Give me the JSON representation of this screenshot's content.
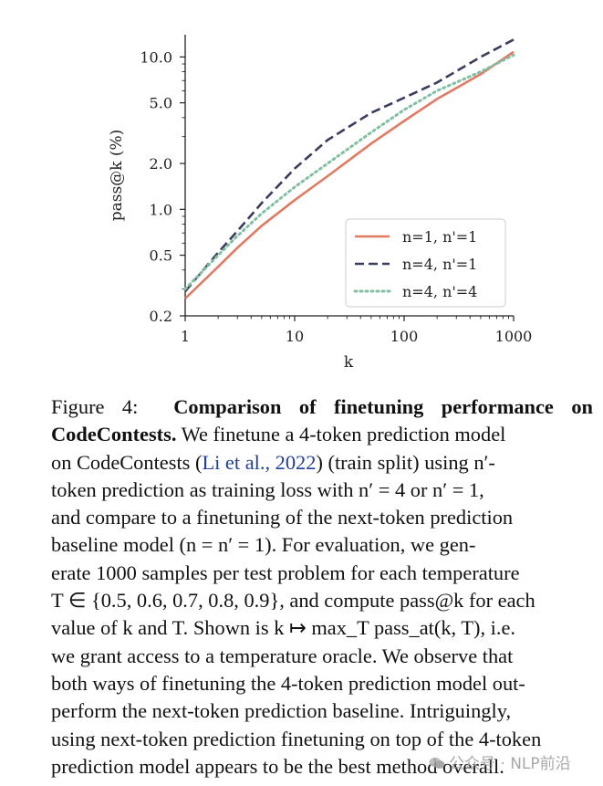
{
  "chart_data": {
    "type": "line",
    "xscale": "log",
    "yscale": "log",
    "xlim": [
      1,
      1000
    ],
    "ylim": [
      0.2,
      14
    ],
    "xlabel": "k",
    "ylabel": "pass@k (%)",
    "xticks": [
      1,
      10,
      100,
      1000
    ],
    "xtick_labels": [
      "1",
      "10",
      "100",
      "1000"
    ],
    "yticks": [
      0.2,
      0.5,
      1.0,
      2.0,
      5.0,
      10.0
    ],
    "ytick_labels": [
      "0.2",
      "0.5",
      "1.0",
      "2.0",
      "5.0",
      "10.0"
    ],
    "legend_position": "lower-right",
    "series": [
      {
        "name": "n=1, n'=1",
        "color": "#e07b63",
        "style": "solid",
        "x": [
          1,
          2,
          3,
          5,
          10,
          20,
          50,
          100,
          200,
          500,
          1000
        ],
        "y": [
          0.26,
          0.42,
          0.56,
          0.78,
          1.15,
          1.65,
          2.7,
          3.8,
          5.3,
          7.7,
          10.8
        ]
      },
      {
        "name": "n=4, n'=1",
        "color": "#3a3c5e",
        "style": "dashed",
        "x": [
          1,
          2,
          3,
          5,
          10,
          20,
          50,
          100,
          200,
          500,
          1000
        ],
        "y": [
          0.29,
          0.52,
          0.72,
          1.1,
          1.85,
          2.85,
          4.3,
          5.4,
          6.8,
          10.0,
          13.0
        ]
      },
      {
        "name": "n=4, n'=4",
        "color": "#82bfa2",
        "style": "dotted",
        "x": [
          1,
          2,
          3,
          5,
          10,
          20,
          50,
          100,
          200,
          500,
          1000
        ],
        "y": [
          0.3,
          0.5,
          0.67,
          0.94,
          1.4,
          2.0,
          3.2,
          4.5,
          6.0,
          8.0,
          10.3
        ]
      }
    ]
  },
  "caption": {
    "figure_label": "Figure 4:",
    "bold_title_l1": "Comparison of finetuning performance on",
    "bold_title_l2": "CodeContests.",
    "text_l2": " We finetune a 4-token prediction model",
    "text_l3a": "on CodeContests (",
    "cite": "Li et al., 2022",
    "text_l3b": ") (train split) using n′-",
    "l4": "token prediction as training loss with n′ = 4 or n′ = 1,",
    "l5": "and compare to a finetuning of the next-token prediction",
    "l6": "baseline model (n = n′ = 1).  For evaluation, we gen-",
    "l7": "erate 1000 samples per test problem for each temperature",
    "l8": "T ∈ {0.5, 0.6, 0.7, 0.8, 0.9}, and compute pass@k for each",
    "l9": "value of k and T. Shown is k ↦ max_T pass_at(k, T), i.e.",
    "l10": "we grant access to a temperature oracle.  We observe that",
    "l11": "both ways of finetuning the 4-token prediction model out-",
    "l12": "perform the next-token prediction baseline.  Intriguingly,",
    "l13": "using next-token prediction finetuning on top of the 4-token",
    "l14": "prediction model appears to be the best method overall."
  },
  "watermark": {
    "text": "公众号 · NLP前沿"
  }
}
